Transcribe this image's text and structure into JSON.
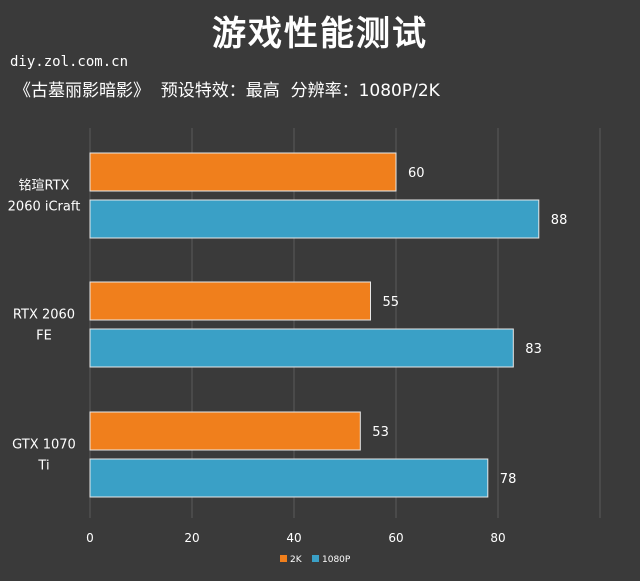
{
  "title": "游戏性能测试",
  "source": "diy.zol.com.cn",
  "subtitle": "《古墓丽影暗影》  预设特效：最高  分辨率：1080P/2K",
  "colors": {
    "2K": "#f07f1c",
    "1080P": "#3aa0c6",
    "background": "#3a3a3a",
    "grid": "#5a5a5a"
  },
  "chart_data": {
    "type": "bar",
    "orientation": "horizontal",
    "categories": [
      [
        "铭瑄RTX",
        "2060 iCraft"
      ],
      [
        "RTX 2060",
        "FE"
      ],
      [
        "GTX 1070",
        "Ti"
      ]
    ],
    "series": [
      {
        "name": "2K",
        "values": [
          60,
          55,
          53
        ]
      },
      {
        "name": "1080P",
        "values": [
          88,
          83,
          78
        ]
      }
    ],
    "xlim": [
      0,
      100
    ],
    "xticks": [
      0,
      20,
      40,
      60,
      80
    ],
    "grid": true,
    "legend": "bottom"
  }
}
